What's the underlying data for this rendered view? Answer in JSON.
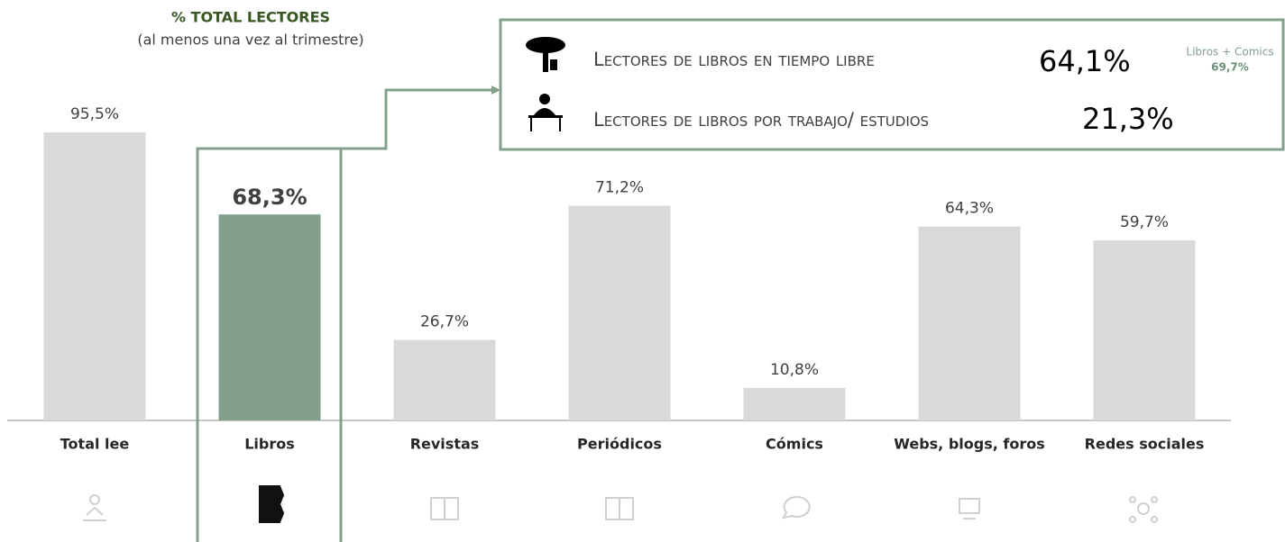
{
  "chart_data": {
    "type": "bar",
    "title": "% TOTAL LECTORES",
    "subtitle": "(al menos una vez al trimestre)",
    "categories": [
      "Total lee",
      "Libros",
      "Revistas",
      "Periódicos",
      "Cómics",
      "Webs, blogs, foros",
      "Redes sociales"
    ],
    "values": [
      95.5,
      68.3,
      26.7,
      71.2,
      10.8,
      64.3,
      59.7
    ],
    "value_labels": [
      "95,5%",
      "68,3%",
      "26,7%",
      "71,2%",
      "10,8%",
      "64,3%",
      "59,7%"
    ],
    "color": "#d9d9d9",
    "highlight": {
      "index": 1,
      "color": "#82a08c"
    },
    "ylim": [
      0,
      100
    ],
    "annotations": [
      {
        "label": "Lectores de libros en tiempo libre",
        "value": 64.1,
        "value_label": "64,1%"
      },
      {
        "label": "Lectores de libros por trabajo/ estudios",
        "value": 21.3,
        "value_label": "21,3%"
      },
      {
        "label": "Libros + Comics",
        "value": 69.7,
        "value_label": "69,7%"
      }
    ]
  }
}
